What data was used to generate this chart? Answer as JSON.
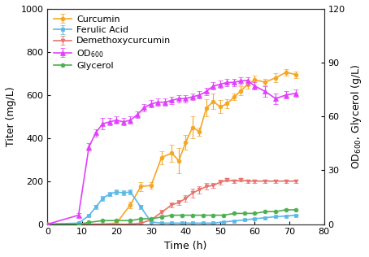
{
  "xlabel": "Time (h)",
  "ylabel_left": "Titer (mg/L)",
  "ylabel_right": "OD$_{600}$, Glycerol (g/L)",
  "xlim": [
    0,
    80
  ],
  "ylim_left": [
    0,
    1000
  ],
  "ylim_right": [
    0,
    120
  ],
  "xticks": [
    0,
    10,
    20,
    30,
    40,
    50,
    60,
    70,
    80
  ],
  "yticks_left": [
    0,
    200,
    400,
    600,
    800,
    1000
  ],
  "yticks_right": [
    0,
    30,
    60,
    90,
    120
  ],
  "curcumin_x": [
    0,
    12,
    16,
    20,
    24,
    27,
    30,
    33,
    36,
    38,
    40,
    42,
    44,
    46,
    48,
    50,
    52,
    54,
    56,
    58,
    60,
    63,
    66,
    69,
    72
  ],
  "curcumin_y": [
    0,
    0,
    0,
    5,
    90,
    175,
    180,
    310,
    330,
    295,
    380,
    450,
    430,
    540,
    570,
    545,
    560,
    590,
    620,
    650,
    670,
    660,
    680,
    705,
    695
  ],
  "curcumin_yerr": [
    0,
    0,
    0,
    5,
    15,
    20,
    15,
    30,
    40,
    60,
    35,
    50,
    20,
    40,
    35,
    30,
    20,
    15,
    20,
    20,
    20,
    15,
    20,
    15,
    15
  ],
  "curcumin_color": "#F5A623",
  "ferulic_x": [
    0,
    9,
    12,
    14,
    16,
    18,
    20,
    22,
    24,
    27,
    30,
    33,
    36,
    39,
    42,
    45,
    48,
    51,
    54,
    57,
    60,
    63,
    66,
    69,
    72
  ],
  "ferulic_y": [
    0,
    5,
    40,
    80,
    120,
    140,
    150,
    145,
    150,
    80,
    10,
    5,
    5,
    5,
    5,
    5,
    5,
    10,
    15,
    20,
    25,
    30,
    35,
    38,
    42
  ],
  "ferulic_yerr": [
    0,
    3,
    5,
    8,
    10,
    10,
    12,
    12,
    12,
    10,
    5,
    3,
    3,
    3,
    3,
    3,
    3,
    3,
    3,
    3,
    3,
    3,
    3,
    3,
    3
  ],
  "ferulic_color": "#5BB8E8",
  "dmc_x": [
    0,
    24,
    27,
    30,
    33,
    36,
    38,
    40,
    42,
    44,
    46,
    48,
    50,
    52,
    54,
    56,
    58,
    60,
    63,
    66,
    69,
    72
  ],
  "dmc_y": [
    0,
    0,
    5,
    20,
    55,
    90,
    100,
    120,
    145,
    160,
    175,
    180,
    195,
    205,
    200,
    205,
    200,
    200,
    200,
    200,
    200,
    200
  ],
  "dmc_yerr": [
    0,
    0,
    3,
    5,
    10,
    12,
    12,
    15,
    20,
    18,
    15,
    12,
    10,
    8,
    8,
    8,
    8,
    8,
    8,
    8,
    8,
    8
  ],
  "dmc_color": "#E8736B",
  "glycerol_x": [
    0,
    9,
    12,
    16,
    20,
    24,
    27,
    30,
    33,
    36,
    39,
    42,
    45,
    48,
    51,
    54,
    57,
    60,
    63,
    66,
    69,
    72
  ],
  "glycerol_y": [
    0,
    0,
    1,
    2,
    2,
    2,
    3,
    3,
    4,
    5,
    5,
    5,
    5,
    5,
    5,
    6,
    6,
    6,
    7,
    7,
    8,
    8
  ],
  "glycerol_color": "#4CAF50",
  "od600_x": [
    0,
    9,
    12,
    14,
    16,
    18,
    20,
    22,
    24,
    26,
    28,
    30,
    32,
    34,
    36,
    38,
    40,
    42,
    44,
    46,
    48,
    50,
    52,
    54,
    56,
    58,
    60,
    63,
    66,
    69,
    72
  ],
  "od600_y": [
    0,
    5,
    43,
    51,
    56,
    57,
    58,
    57,
    58,
    61,
    65,
    67,
    68,
    68,
    69,
    70,
    70,
    71,
    72,
    74,
    77,
    78,
    79,
    79,
    80,
    80,
    77,
    74,
    70,
    72,
    73
  ],
  "od600_yerr": [
    0,
    1,
    2,
    2,
    3,
    2,
    2,
    2,
    2,
    2,
    2,
    2,
    2,
    2,
    2,
    2,
    2,
    2,
    2,
    2,
    2,
    2,
    2,
    2,
    2,
    2,
    2,
    3,
    3,
    2,
    2
  ],
  "od600_color": "#E040FB",
  "background_color": "#ffffff",
  "fontsize_label": 9,
  "fontsize_tick": 8,
  "fontsize_legend": 8
}
